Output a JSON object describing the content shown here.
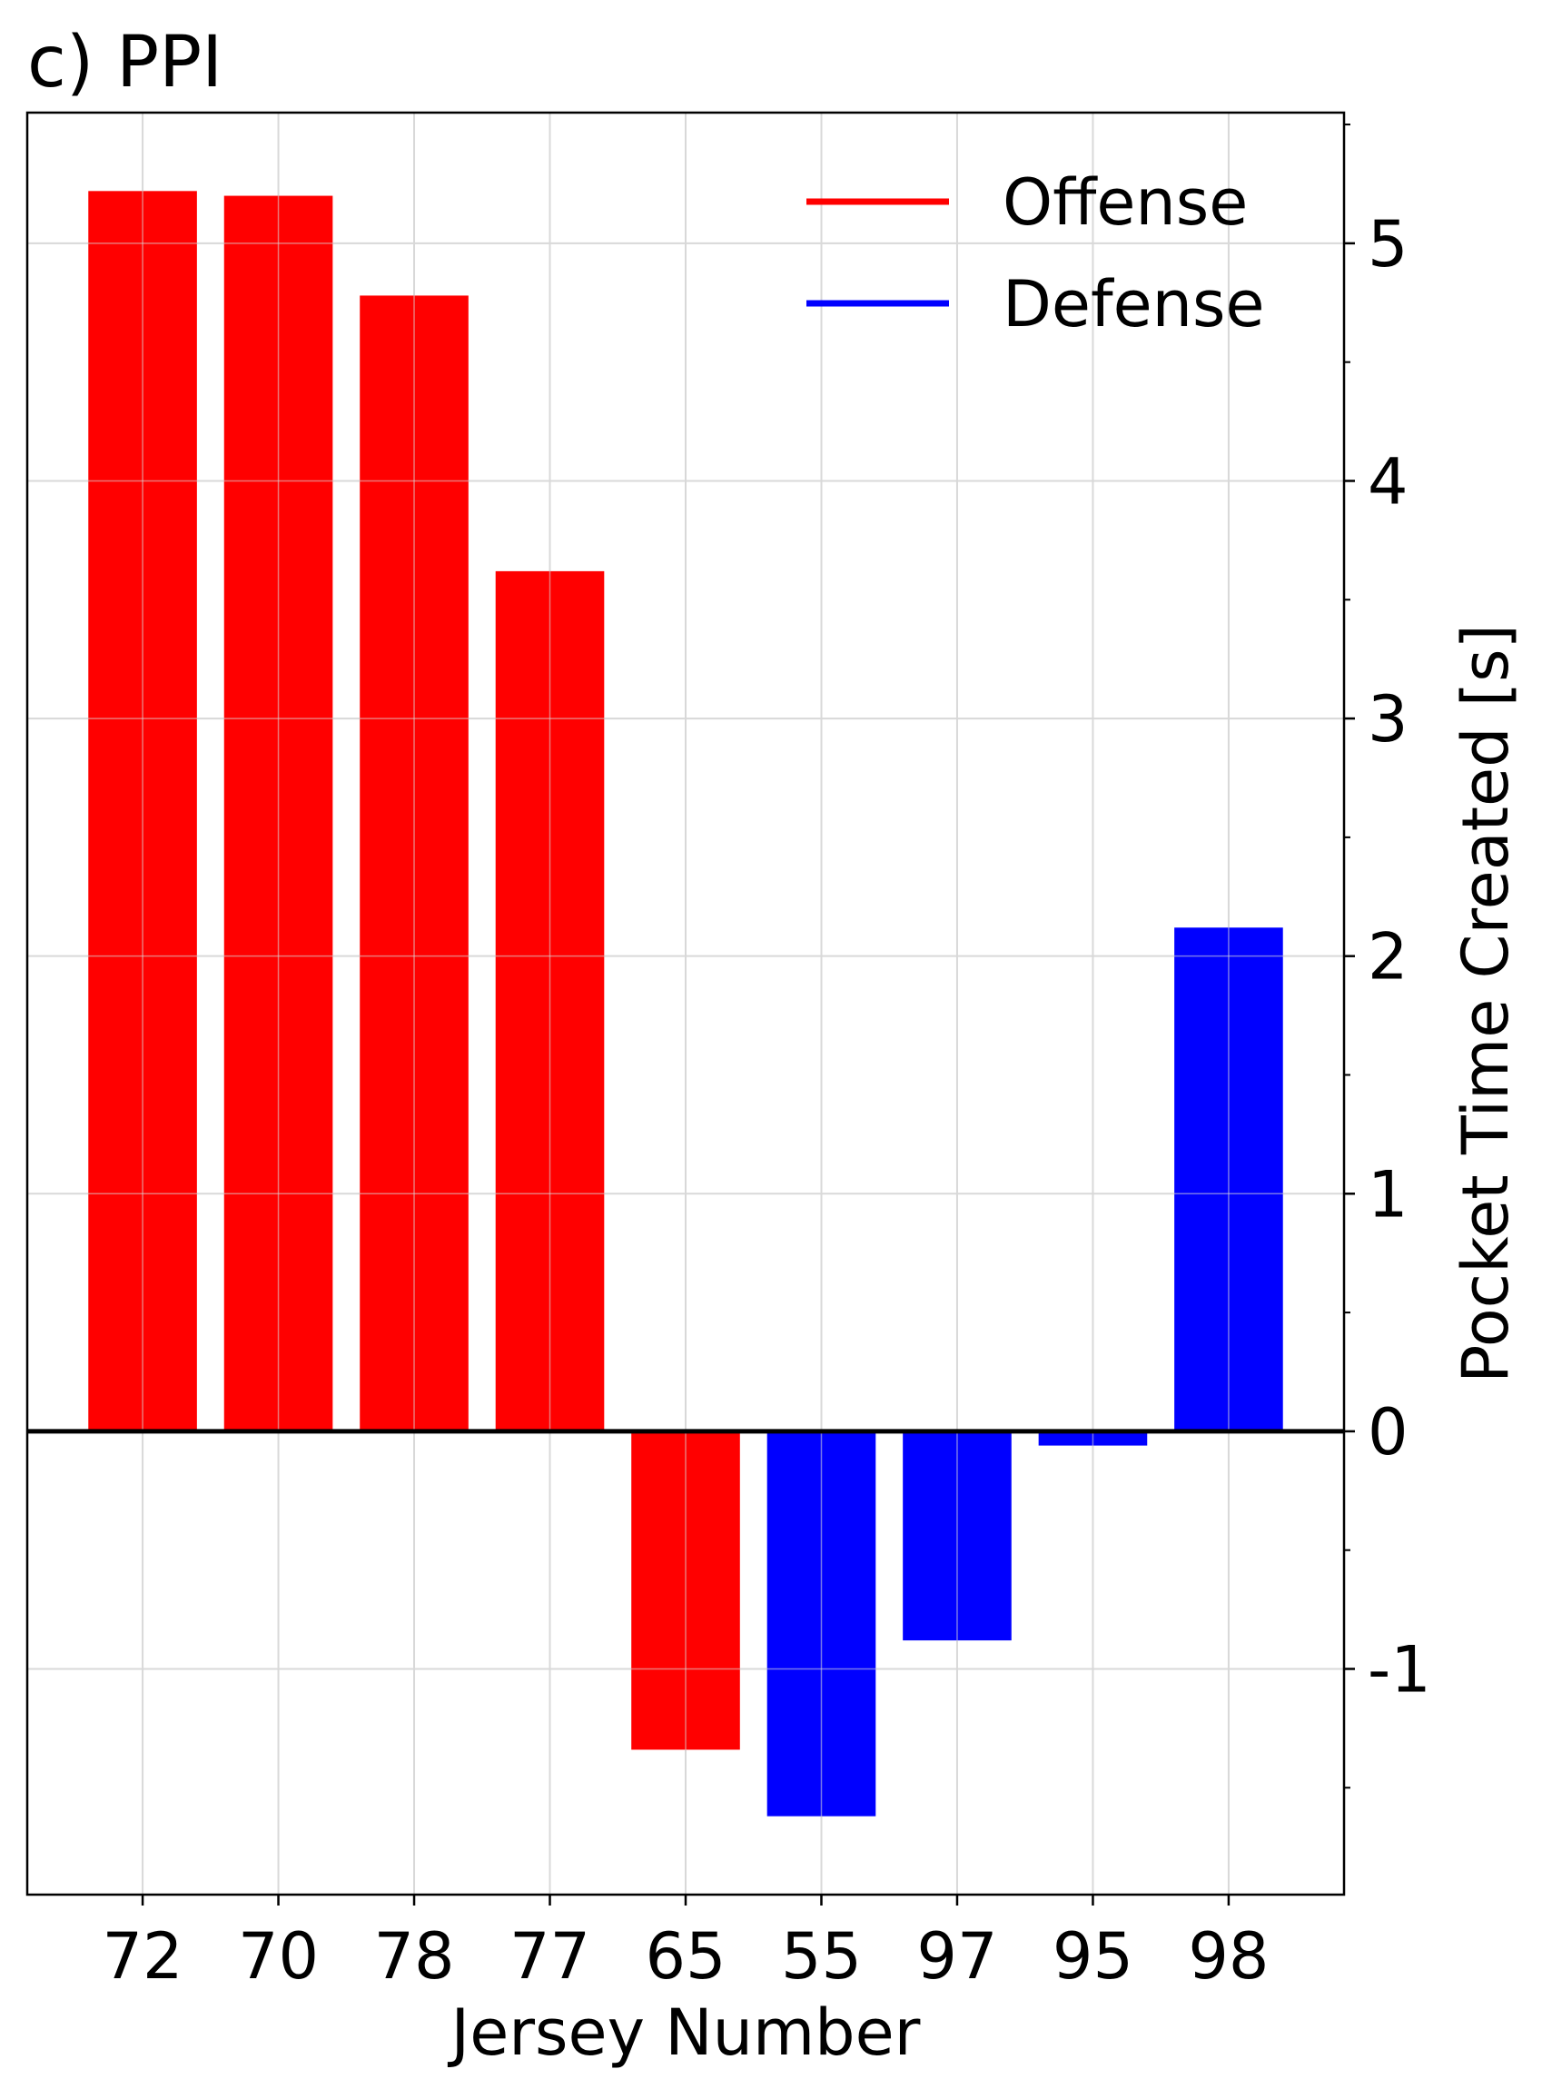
{
  "chart_data": {
    "type": "bar",
    "title": "c) PPI",
    "xlabel": "Jersey Number",
    "ylabel": "Pocket Time Created [s]",
    "categories": [
      "72",
      "70",
      "78",
      "77",
      "65",
      "55",
      "97",
      "95",
      "98"
    ],
    "values": [
      5.22,
      5.2,
      4.78,
      3.62,
      -1.34,
      -1.62,
      -0.88,
      -0.06,
      2.12
    ],
    "groups": [
      "Offense",
      "Offense",
      "Offense",
      "Offense",
      "Offense",
      "Defense",
      "Defense",
      "Defense",
      "Defense"
    ],
    "ylim": [
      -1.95,
      5.55
    ],
    "yticks": [
      -1,
      0,
      1,
      2,
      3,
      4,
      5
    ],
    "ytick_labels": [
      "-1",
      "0",
      "1",
      "2",
      "3",
      "4",
      "5"
    ],
    "yaxis_side": "right",
    "grid": true,
    "zero_line": true,
    "legend": {
      "placement": "top-right",
      "entries": [
        {
          "label": "Offense",
          "color": "#ff0000"
        },
        {
          "label": "Defense",
          "color": "#0000ff"
        }
      ]
    },
    "colors": {
      "Offense": "#ff0000",
      "Defense": "#0000ff"
    }
  }
}
